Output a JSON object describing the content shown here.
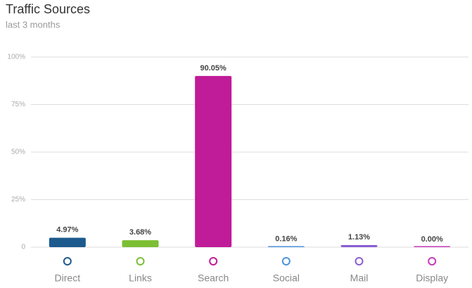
{
  "chart_data": {
    "type": "bar",
    "title": "Traffic Sources",
    "subtitle": "last 3 months",
    "categories": [
      "Direct",
      "Links",
      "Search",
      "Social",
      "Mail",
      "Display"
    ],
    "values": [
      4.97,
      3.68,
      90.05,
      0.16,
      1.13,
      0.0
    ],
    "value_labels": [
      "4.97%",
      "3.68%",
      "90.05%",
      "0.16%",
      "1.13%",
      "0.00%"
    ],
    "colors": [
      "#1d5a8e",
      "#7cbf35",
      "#c01b98",
      "#4d93dc",
      "#8a5ed2",
      "#c63bb9"
    ],
    "ylim": [
      0,
      100
    ],
    "yticks": [
      {
        "value": 0,
        "label": "0"
      },
      {
        "value": 25,
        "label": "25%"
      },
      {
        "value": 50,
        "label": "50%"
      },
      {
        "value": 75,
        "label": "75%"
      },
      {
        "value": 100,
        "label": "100%"
      }
    ],
    "grid": true
  }
}
